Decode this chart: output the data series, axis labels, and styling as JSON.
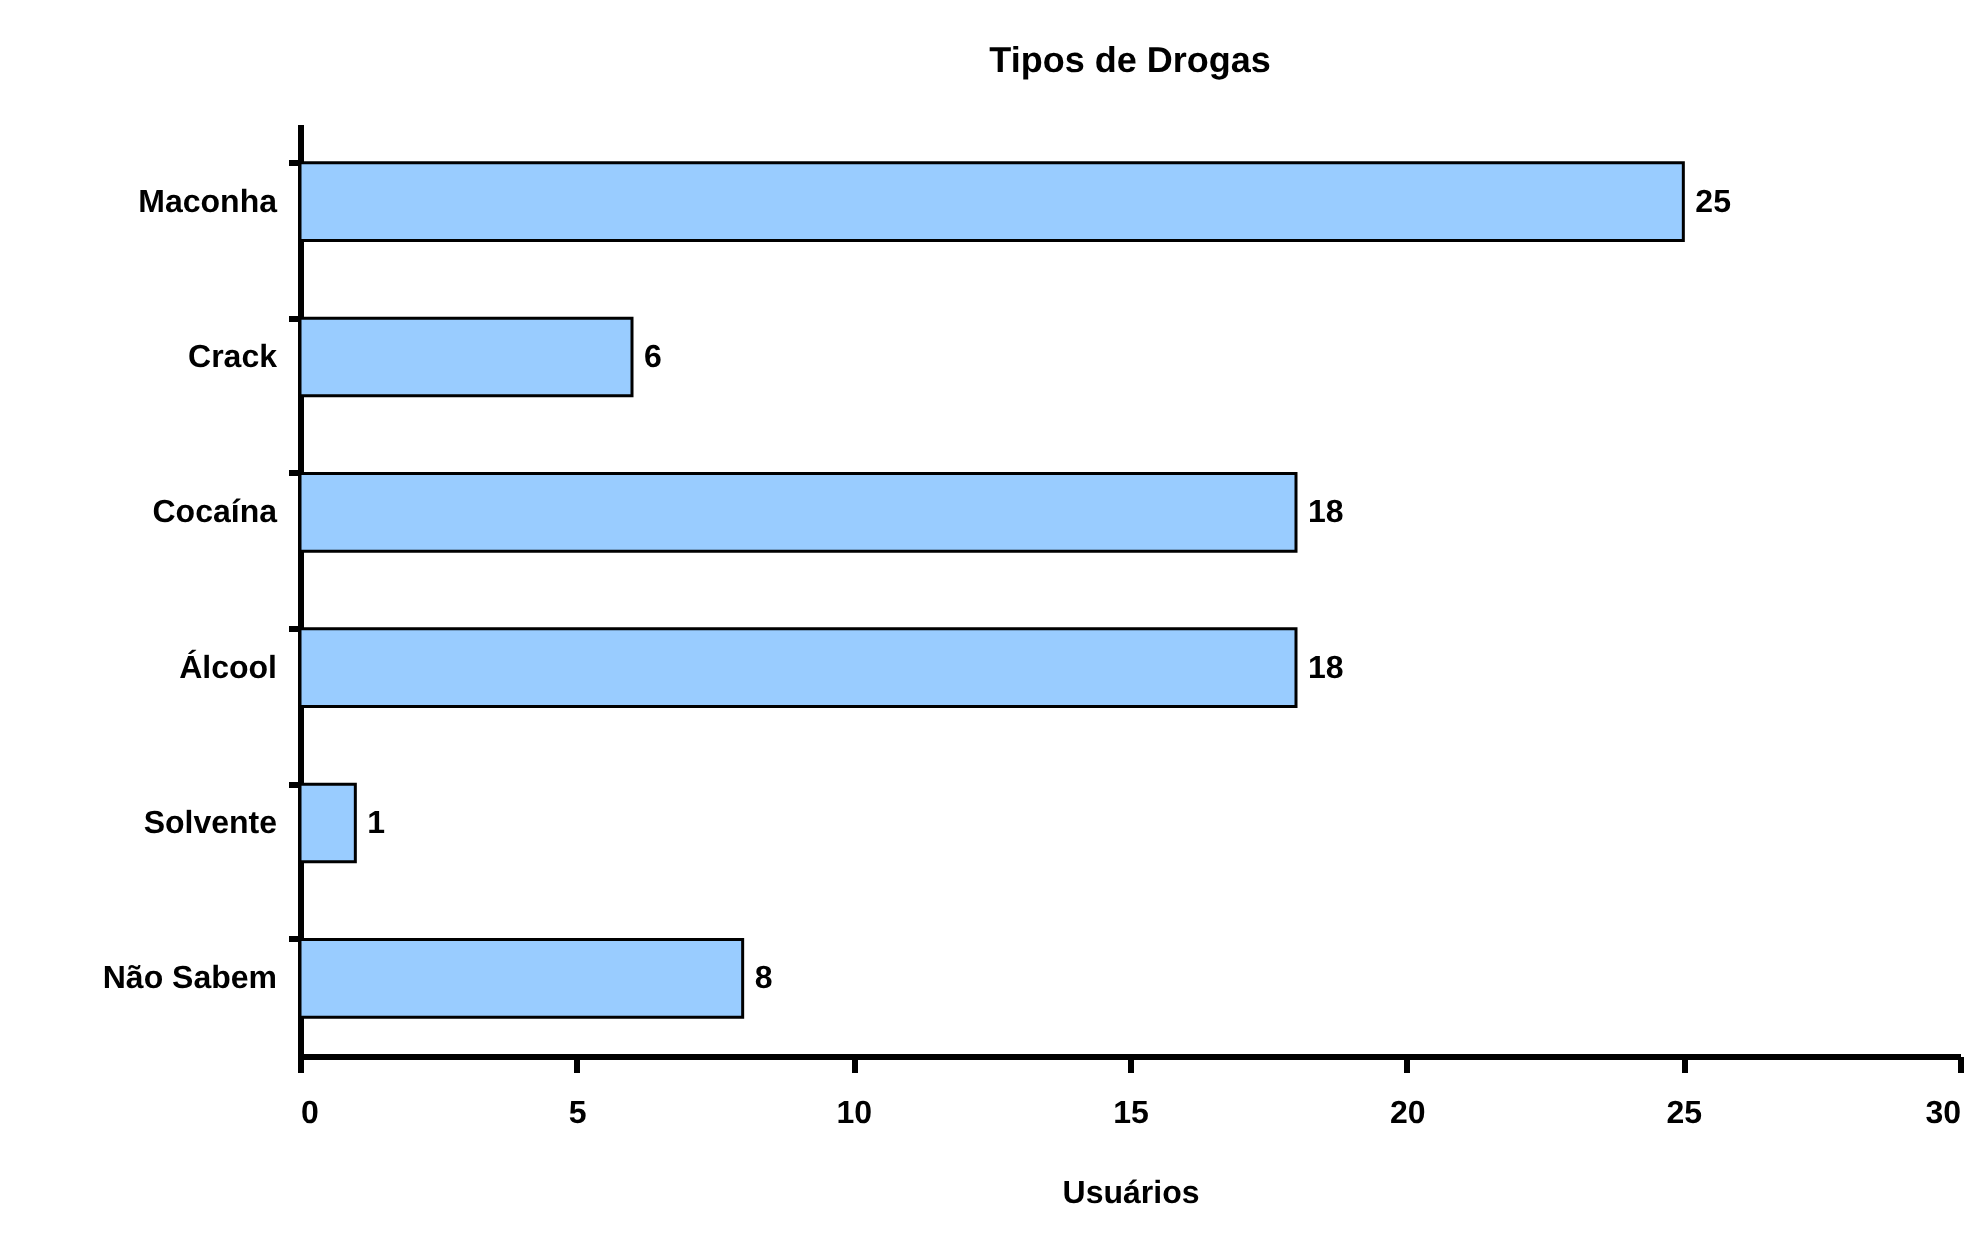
{
  "chart_data": {
    "type": "bar",
    "orientation": "horizontal",
    "title": "Tipos de Drogas",
    "xlabel": "Usuários",
    "categories": [
      "Maconha",
      "Crack",
      "Cocaína",
      "Álcool",
      "Solvente",
      "Não Sabem"
    ],
    "values": [
      25,
      6,
      18,
      18,
      1,
      8
    ],
    "color": "#99ccff",
    "xlim": [
      0,
      30
    ],
    "xticks": [
      0,
      5,
      10,
      15,
      20,
      25,
      30
    ],
    "grid": false,
    "data_labels": true
  }
}
